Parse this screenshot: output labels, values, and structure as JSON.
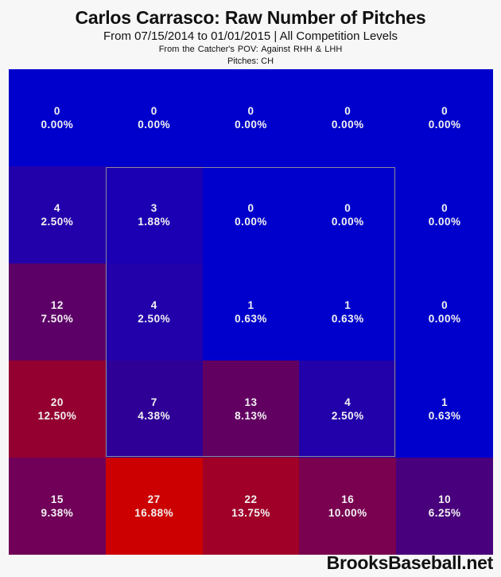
{
  "header": {
    "title": "Carlos Carrasco: Raw Number of Pitches",
    "subtitle": "From 07/15/2014 to 01/01/2015 | All Competition Levels",
    "pov": "From the Catcher's POV:   Against RHH & LHH",
    "pitches": "Pitches:  CH"
  },
  "footer": {
    "brand": "BrooksBaseball.net"
  },
  "colors": {
    "zero": "#0000cc",
    "max": "#cc0000",
    "zone_border": "#8a8a9a"
  },
  "chart_data": {
    "type": "heatmap",
    "title": "Carlos Carrasco: Raw Number of Pitches",
    "subtitle": "From 07/15/2014 to 01/01/2015 | All Competition Levels",
    "notes": [
      "From the Catcher's POV: Against RHH & LHH",
      "Pitches: CH"
    ],
    "rows": 5,
    "cols": 5,
    "strike_zone": "inner 3x3 (rows 2-4, cols 2-4)",
    "counts": [
      [
        0,
        0,
        0,
        0,
        0
      ],
      [
        4,
        3,
        0,
        0,
        0
      ],
      [
        12,
        4,
        1,
        1,
        0
      ],
      [
        20,
        7,
        13,
        4,
        1
      ],
      [
        15,
        27,
        22,
        16,
        10
      ]
    ],
    "percents": [
      [
        "0.00%",
        "0.00%",
        "0.00%",
        "0.00%",
        "0.00%"
      ],
      [
        "2.50%",
        "1.88%",
        "0.00%",
        "0.00%",
        "0.00%"
      ],
      [
        "7.50%",
        "2.50%",
        "0.63%",
        "0.63%",
        "0.00%"
      ],
      [
        "12.50%",
        "4.38%",
        "8.13%",
        "2.50%",
        "0.63%"
      ],
      [
        "9.38%",
        "16.88%",
        "13.75%",
        "10.00%",
        "6.25%"
      ]
    ],
    "cell_colors": [
      [
        "#0000cc",
        "#0000cc",
        "#0000cc",
        "#0000cc",
        "#0000cc"
      ],
      [
        "#2200aa",
        "#1a00b2",
        "#0000cc",
        "#0000cc",
        "#0000cc"
      ],
      [
        "#5c0068",
        "#2200aa",
        "#0000cc",
        "#0000cc",
        "#0000cc"
      ],
      [
        "#940030",
        "#2e0096",
        "#620062",
        "#2200aa",
        "#0000cc"
      ],
      [
        "#700058",
        "#cc0000",
        "#a00028",
        "#7a0050",
        "#48007c"
      ]
    ]
  }
}
